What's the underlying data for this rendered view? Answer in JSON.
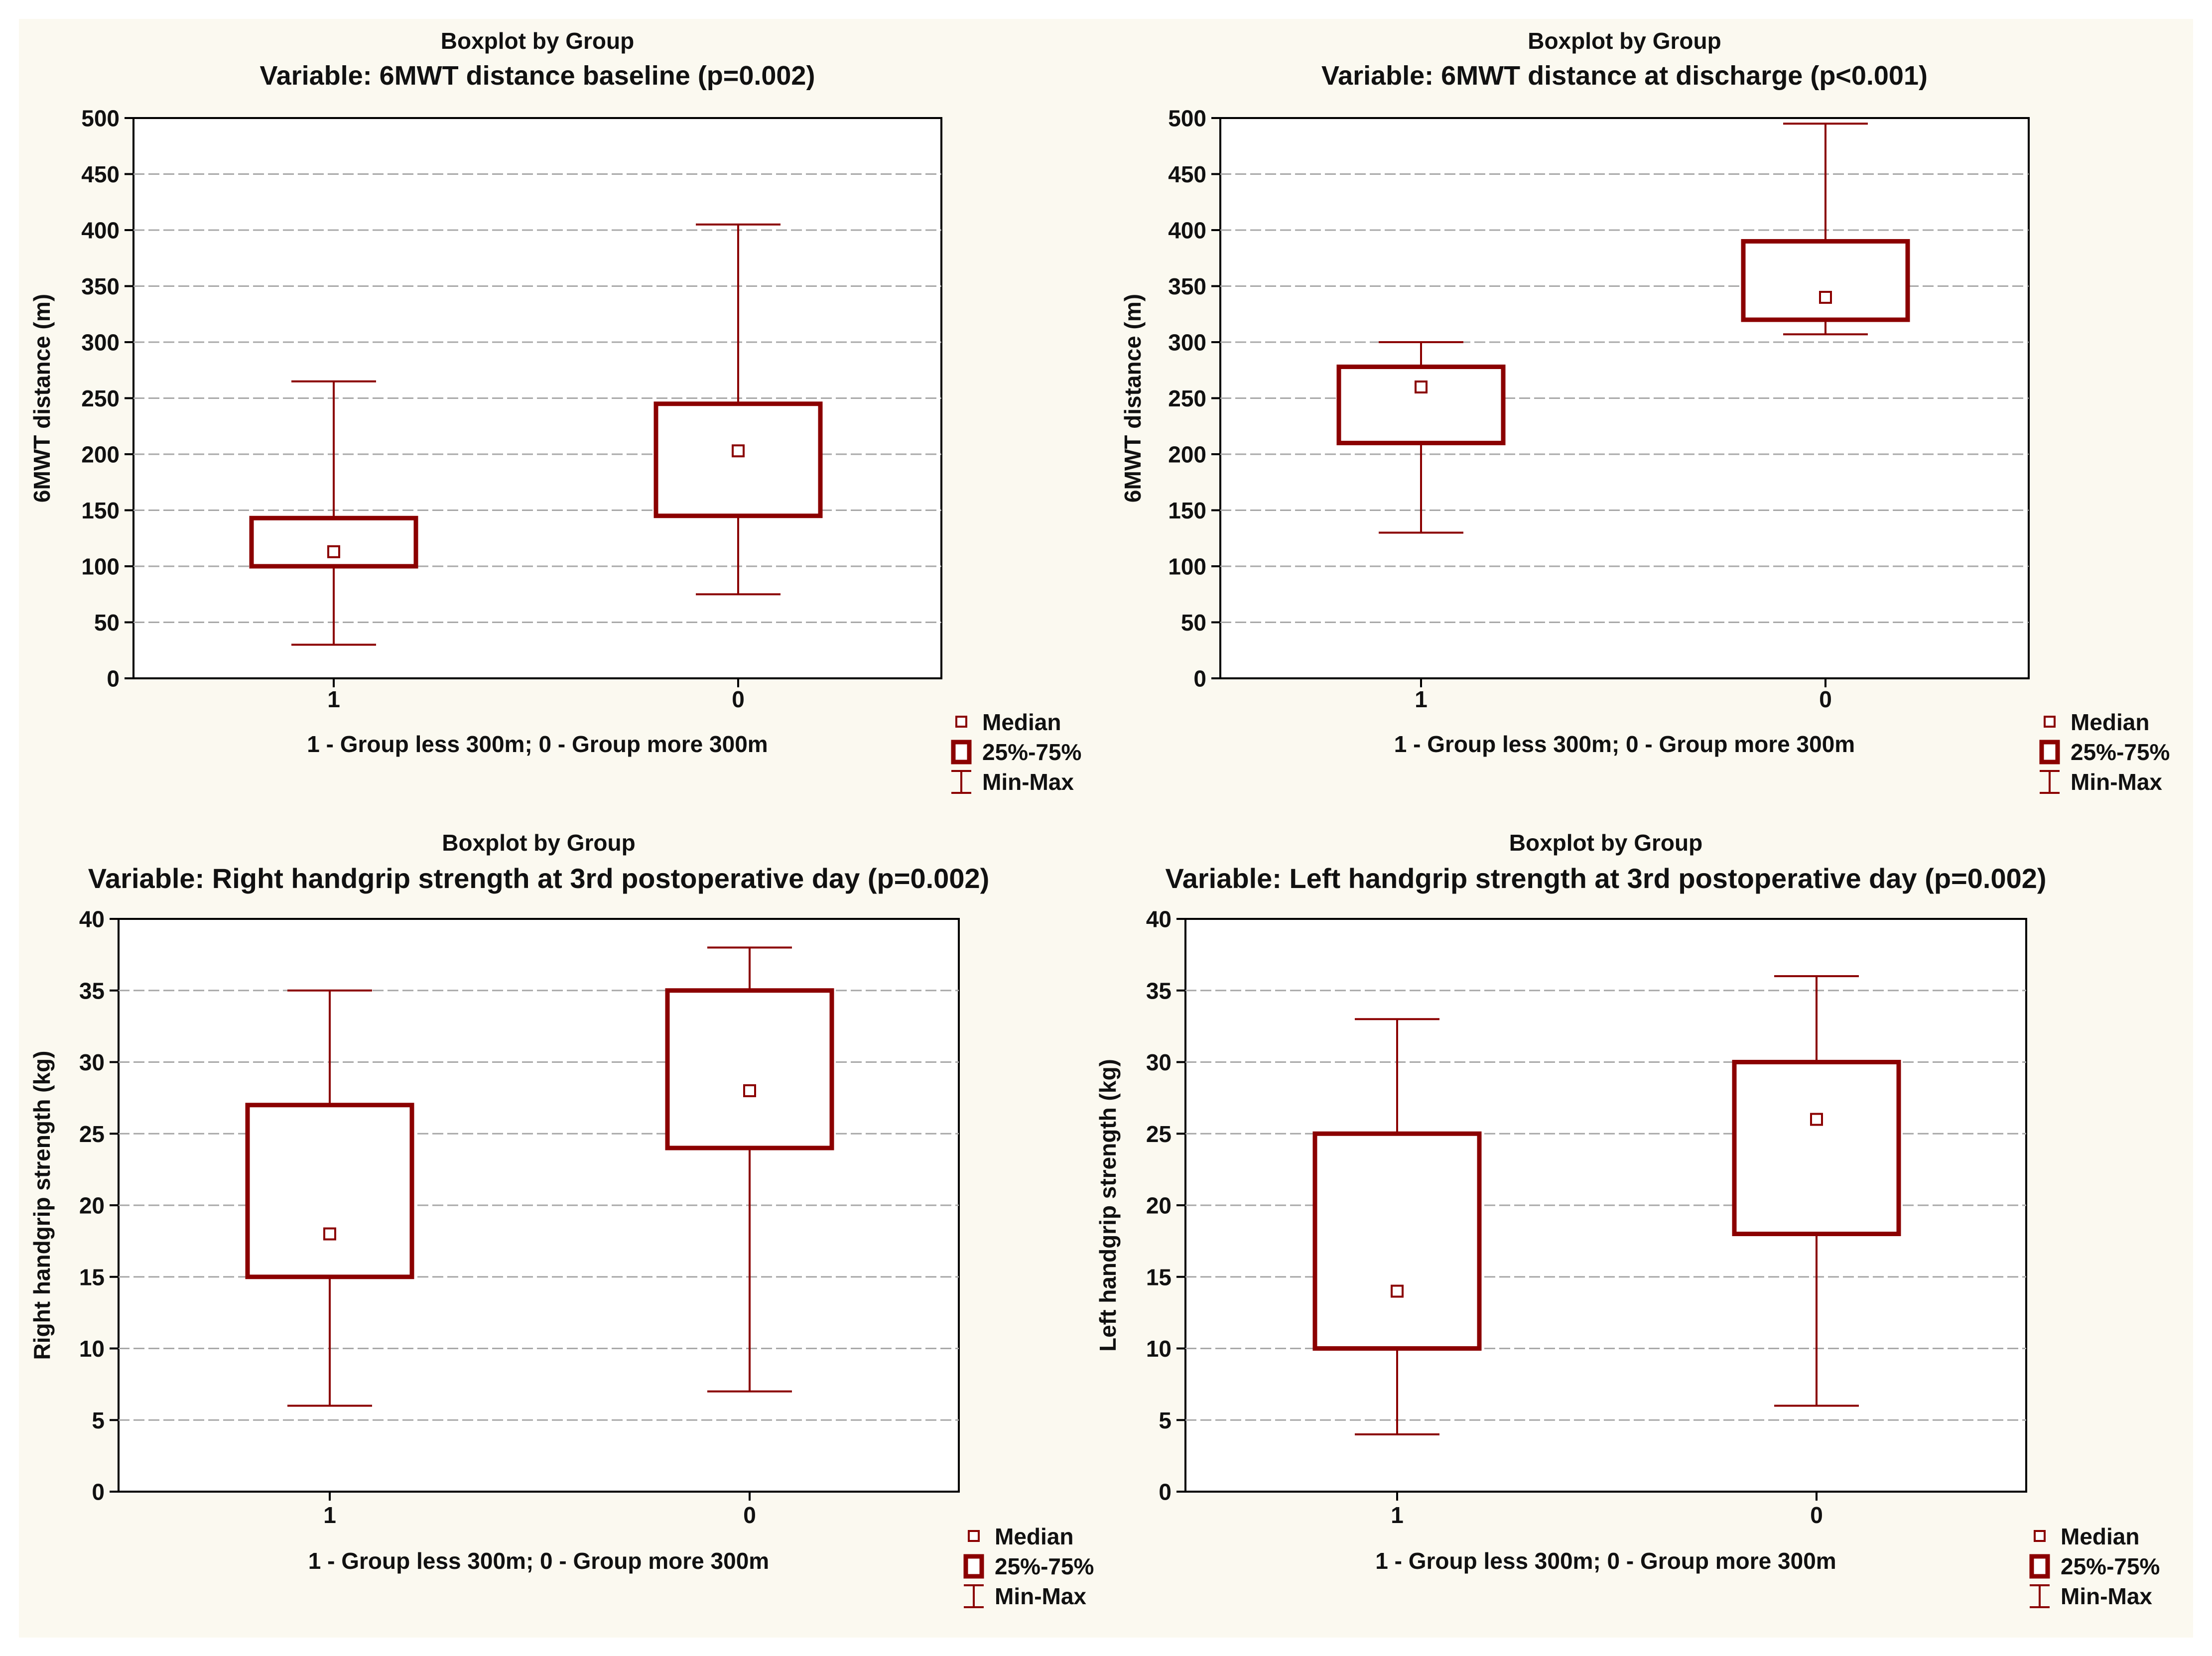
{
  "colors": {
    "accent": "#8b0000",
    "grid": "#a8a8a8",
    "panel_background": "#fbf9f0"
  },
  "chart_data": [
    {
      "type": "boxplot",
      "supertitle": "Boxplot by Group",
      "title": "Variable: 6MWT distance baseline (p=0.002)",
      "ylabel": "6MWT distance (m)",
      "xlabel": "1 - Group less 300m; 0 - Group more 300m",
      "ylim": [
        0,
        500
      ],
      "yticks": [
        0,
        50,
        100,
        150,
        200,
        250,
        300,
        350,
        400,
        450,
        500
      ],
      "legend": {
        "position": "bottom-right",
        "median": "Median",
        "box": "25%-75%",
        "range": "Min-Max"
      },
      "groups": [
        {
          "label": "1",
          "min": 30,
          "q1": 100,
          "median": 113,
          "q3": 143,
          "max": 265
        },
        {
          "label": "0",
          "min": 75,
          "q1": 145,
          "median": 203,
          "q3": 245,
          "max": 405
        }
      ]
    },
    {
      "type": "boxplot",
      "supertitle": "Boxplot by Group",
      "title": "Variable: 6MWT distance at discharge (p<0.001)",
      "ylabel": "6MWT distance (m)",
      "xlabel": "1 - Group less 300m; 0 - Group more 300m",
      "ylim": [
        0,
        500
      ],
      "yticks": [
        0,
        50,
        100,
        150,
        200,
        250,
        300,
        350,
        400,
        450,
        500
      ],
      "legend": {
        "position": "bottom-right",
        "median": "Median",
        "box": "25%-75%",
        "range": "Min-Max"
      },
      "groups": [
        {
          "label": "1",
          "min": 130,
          "q1": 210,
          "median": 260,
          "q3": 278,
          "max": 300
        },
        {
          "label": "0",
          "min": 307,
          "q1": 320,
          "median": 340,
          "q3": 390,
          "max": 495
        }
      ]
    },
    {
      "type": "boxplot",
      "supertitle": "Boxplot by Group",
      "title": "Variable: Right handgrip strength at 3rd postoperative day (p=0.002)",
      "ylabel": "Right handgrip strength (kg)",
      "xlabel": "1 - Group less 300m; 0 - Group more 300m",
      "ylim": [
        0,
        40
      ],
      "yticks": [
        0,
        5,
        10,
        15,
        20,
        25,
        30,
        35,
        40
      ],
      "legend": {
        "position": "bottom-right",
        "median": "Median",
        "box": "25%-75%",
        "range": "Min-Max"
      },
      "groups": [
        {
          "label": "1",
          "min": 6,
          "q1": 15,
          "median": 18,
          "q3": 27,
          "max": 35
        },
        {
          "label": "0",
          "min": 7,
          "q1": 24,
          "median": 28,
          "q3": 35,
          "max": 38
        }
      ]
    },
    {
      "type": "boxplot",
      "supertitle": "Boxplot by Group",
      "title": "Variable: Left handgrip strength at 3rd postoperative day (p=0.002)",
      "ylabel": "Left handgrip strength (kg)",
      "xlabel": "1 - Group less 300m; 0 - Group more 300m",
      "ylim": [
        0,
        40
      ],
      "yticks": [
        0,
        5,
        10,
        15,
        20,
        25,
        30,
        35,
        40
      ],
      "legend": {
        "position": "bottom-right",
        "median": "Median",
        "box": "25%-75%",
        "range": "Min-Max"
      },
      "groups": [
        {
          "label": "1",
          "min": 4,
          "q1": 10,
          "median": 14,
          "q3": 25,
          "max": 33
        },
        {
          "label": "0",
          "min": 6,
          "q1": 18,
          "median": 26,
          "q3": 30,
          "max": 36
        }
      ]
    }
  ]
}
